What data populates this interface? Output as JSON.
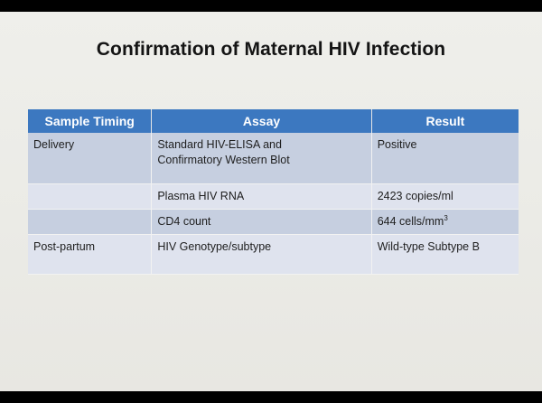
{
  "slide": {
    "title": "Confirmation of Maternal HIV Infection"
  },
  "table": {
    "headers": [
      "Sample Timing",
      "Assay",
      "Result"
    ],
    "rows": [
      {
        "timing": "Delivery",
        "assay_line1": "Standard HIV-ELISA and",
        "assay_line2": "Confirmatory Western Blot",
        "result": "Positive"
      },
      {
        "timing": "",
        "assay": "Plasma HIV RNA",
        "result": "2423 copies/ml"
      },
      {
        "timing": "",
        "assay": "CD4 count",
        "result": "644 cells/mm",
        "result_sup": "3"
      },
      {
        "timing": "Post-partum",
        "assay": "HIV Genotype/subtype",
        "result": "Wild-type Subtype B"
      }
    ]
  },
  "colors": {
    "header_bg": "#3c78c0",
    "row_dark": "#c6cfe0",
    "row_light": "#dfe3ee",
    "slide_bg": "#efefeb"
  }
}
